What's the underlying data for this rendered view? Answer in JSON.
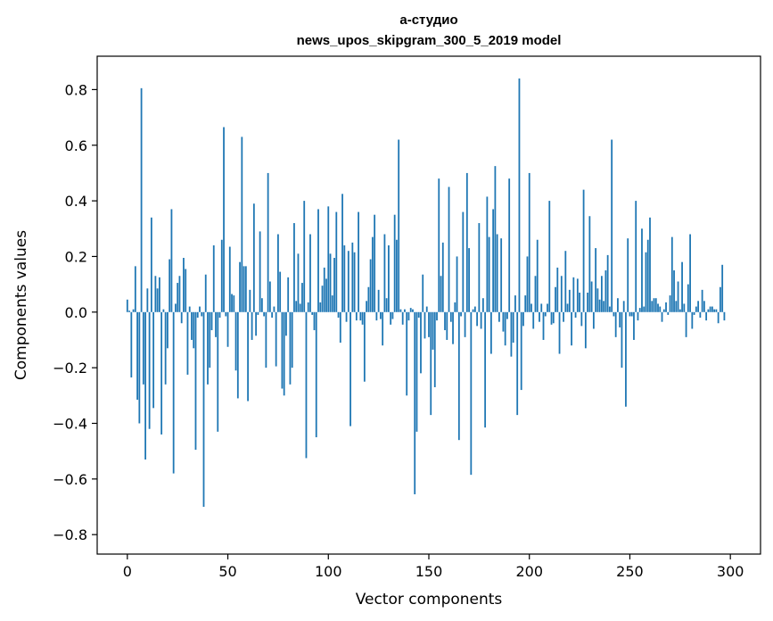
{
  "chart_data": {
    "type": "bar",
    "title_line1": "а-студио",
    "title_line2": "news_upos_skipgram_300_5_2019 model",
    "xlabel": "Vector components",
    "ylabel": "Components values",
    "xlim": [
      -15,
      315
    ],
    "ylim": [
      -0.87,
      0.92
    ],
    "x_ticks": [
      0,
      50,
      100,
      150,
      200,
      250,
      300
    ],
    "y_ticks": [
      -0.8,
      -0.6,
      -0.4,
      -0.2,
      0.0,
      0.2,
      0.4,
      0.6,
      0.8
    ],
    "y_tick_labels": [
      "−0.8",
      "−0.6",
      "−0.4",
      "−0.2",
      "0.0",
      "0.2",
      "0.4",
      "0.6",
      "0.8"
    ],
    "bar_color": "#1f77b4",
    "grid": false,
    "values": [
      0.045,
      0.005,
      -0.235,
      0.01,
      0.165,
      -0.315,
      -0.4,
      0.805,
      -0.26,
      -0.53,
      0.085,
      -0.42,
      0.34,
      -0.345,
      0.13,
      0.085,
      0.125,
      -0.44,
      0.01,
      -0.26,
      -0.13,
      0.19,
      0.37,
      -0.58,
      0.03,
      0.105,
      0.13,
      -0.04,
      0.195,
      0.155,
      -0.225,
      0.02,
      -0.1,
      -0.13,
      -0.495,
      -0.02,
      0.02,
      -0.015,
      -0.7,
      0.135,
      -0.26,
      -0.2,
      -0.065,
      0.24,
      -0.09,
      -0.43,
      -0.02,
      0.26,
      0.665,
      -0.015,
      -0.125,
      0.235,
      0.065,
      0.06,
      -0.21,
      -0.31,
      0.18,
      0.63,
      0.165,
      0.165,
      -0.32,
      0.08,
      -0.1,
      0.39,
      -0.085,
      -0.01,
      0.29,
      0.05,
      -0.015,
      -0.2,
      0.5,
      0.11,
      -0.02,
      0.02,
      -0.195,
      0.28,
      0.145,
      -0.275,
      -0.3,
      -0.085,
      0.125,
      -0.26,
      -0.2,
      0.32,
      0.04,
      0.21,
      0.03,
      0.105,
      0.4,
      -0.525,
      0.035,
      0.28,
      -0.01,
      -0.065,
      -0.45,
      0.37,
      0.035,
      0.095,
      0.16,
      0.12,
      0.38,
      0.21,
      0.06,
      0.195,
      0.36,
      -0.02,
      -0.11,
      0.425,
      0.24,
      -0.035,
      0.22,
      -0.41,
      0.25,
      0.215,
      -0.03,
      0.36,
      -0.03,
      -0.045,
      -0.25,
      0.04,
      0.09,
      0.19,
      0.27,
      0.35,
      -0.03,
      0.08,
      -0.025,
      -0.12,
      0.28,
      0.05,
      0.24,
      -0.045,
      -0.025,
      0.35,
      0.26,
      0.62,
      0.01,
      -0.045,
      0.01,
      -0.3,
      -0.03,
      0.015,
      0.01,
      -0.655,
      -0.43,
      -0.02,
      -0.22,
      0.135,
      -0.095,
      0.02,
      -0.09,
      -0.37,
      -0.135,
      -0.27,
      -0.03,
      0.48,
      0.13,
      0.25,
      -0.065,
      -0.1,
      0.45,
      -0.035,
      -0.115,
      0.035,
      0.2,
      -0.46,
      -0.015,
      0.36,
      -0.09,
      0.5,
      0.23,
      -0.585,
      0.01,
      0.02,
      -0.05,
      0.32,
      -0.06,
      0.05,
      -0.415,
      0.415,
      0.27,
      -0.15,
      0.37,
      0.525,
      0.28,
      -0.035,
      0.265,
      -0.07,
      -0.12,
      -0.025,
      0.48,
      -0.16,
      -0.11,
      0.06,
      -0.37,
      0.84,
      -0.28,
      -0.05,
      0.06,
      0.2,
      0.5,
      0.03,
      -0.06,
      0.13,
      0.26,
      -0.035,
      0.03,
      -0.1,
      -0.015,
      0.03,
      0.4,
      -0.045,
      -0.04,
      0.09,
      0.16,
      -0.15,
      0.13,
      -0.035,
      0.22,
      0.03,
      0.08,
      -0.12,
      0.125,
      -0.02,
      0.12,
      0.07,
      -0.05,
      0.44,
      -0.13,
      0.07,
      0.345,
      0.11,
      -0.06,
      0.23,
      0.085,
      0.045,
      0.13,
      0.04,
      0.15,
      0.205,
      0.02,
      0.62,
      -0.015,
      -0.09,
      0.05,
      -0.055,
      -0.2,
      0.04,
      -0.34,
      0.265,
      -0.015,
      -0.015,
      -0.1,
      0.4,
      -0.03,
      0.015,
      0.3,
      0.02,
      0.215,
      0.26,
      0.34,
      0.04,
      0.05,
      0.05,
      0.03,
      0.02,
      -0.035,
      0.01,
      0.035,
      -0.01,
      0.06,
      0.27,
      0.15,
      0.04,
      0.11,
      0.01,
      0.18,
      0.03,
      -0.09,
      0.1,
      0.28,
      -0.06,
      -0.01,
      0.02,
      0.04,
      -0.02,
      0.08,
      0.04,
      -0.03,
      0.01,
      0.02,
      0.02,
      0.01,
      0.01,
      -0.04,
      0.09,
      0.17,
      -0.03
    ]
  }
}
